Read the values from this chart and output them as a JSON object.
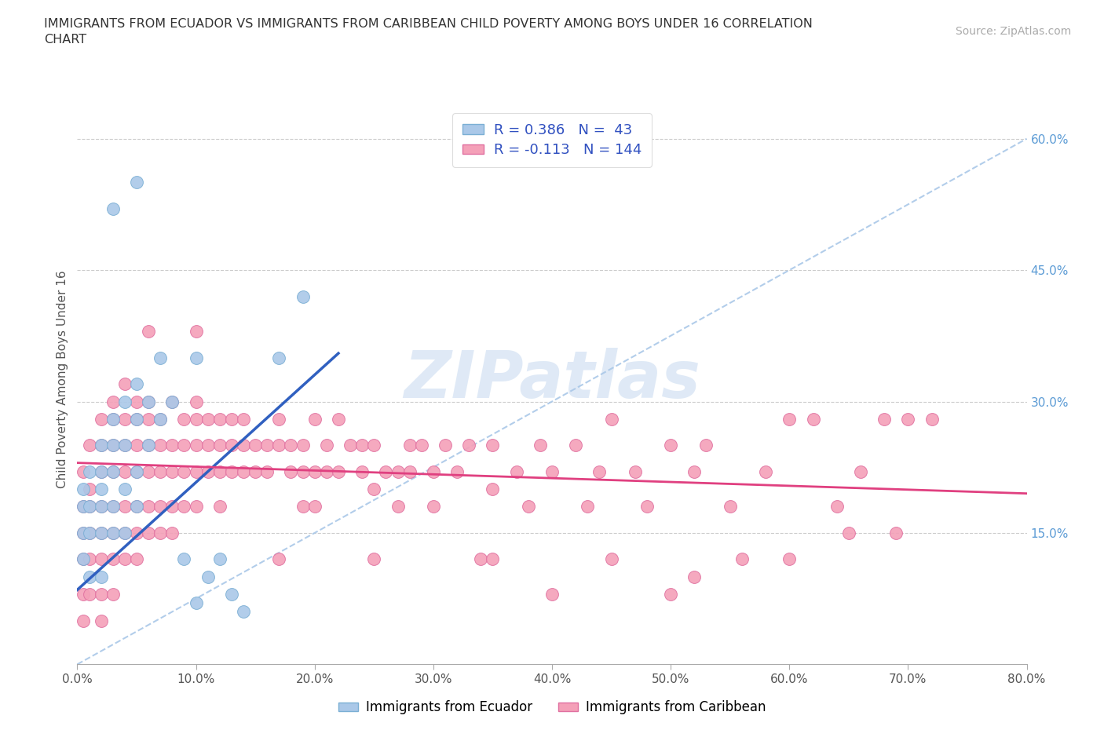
{
  "title": "IMMIGRANTS FROM ECUADOR VS IMMIGRANTS FROM CARIBBEAN CHILD POVERTY AMONG BOYS UNDER 16 CORRELATION\nCHART",
  "source_text": "Source: ZipAtlas.com",
  "ylabel": "Child Poverty Among Boys Under 16",
  "xlim": [
    0,
    0.8
  ],
  "ylim": [
    0,
    0.65
  ],
  "xticks": [
    0.0,
    0.1,
    0.2,
    0.3,
    0.4,
    0.5,
    0.6,
    0.7,
    0.8
  ],
  "xticklabels": [
    "0.0%",
    "10.0%",
    "20.0%",
    "30.0%",
    "40.0%",
    "50.0%",
    "60.0%",
    "70.0%",
    "80.0%"
  ],
  "yticks_right": [
    0.15,
    0.3,
    0.45,
    0.6
  ],
  "yticklabels_right": [
    "15.0%",
    "30.0%",
    "45.0%",
    "60.0%"
  ],
  "ecuador_color": "#aac8e8",
  "ecuador_edge": "#7bafd4",
  "caribbean_color": "#f4a0b8",
  "caribbean_edge": "#e070a0",
  "ecuador_R": 0.386,
  "ecuador_N": 43,
  "caribbean_R": -0.113,
  "caribbean_N": 144,
  "watermark": "ZIPatlas",
  "legend_label_ecuador": "Immigrants from Ecuador",
  "legend_label_caribbean": "Immigrants from Caribbean",
  "ecuador_trend": [
    0.0,
    0.085,
    0.22,
    0.355
  ],
  "caribbean_trend": [
    0.0,
    0.23,
    0.8,
    0.195
  ],
  "diag_line": [
    0.0,
    0.0,
    0.8,
    0.6
  ],
  "ecuador_scatter": [
    [
      0.005,
      0.2
    ],
    [
      0.005,
      0.18
    ],
    [
      0.005,
      0.15
    ],
    [
      0.005,
      0.12
    ],
    [
      0.01,
      0.22
    ],
    [
      0.01,
      0.18
    ],
    [
      0.01,
      0.15
    ],
    [
      0.01,
      0.1
    ],
    [
      0.02,
      0.25
    ],
    [
      0.02,
      0.22
    ],
    [
      0.02,
      0.2
    ],
    [
      0.02,
      0.18
    ],
    [
      0.02,
      0.15
    ],
    [
      0.02,
      0.1
    ],
    [
      0.03,
      0.28
    ],
    [
      0.03,
      0.25
    ],
    [
      0.03,
      0.22
    ],
    [
      0.03,
      0.18
    ],
    [
      0.03,
      0.15
    ],
    [
      0.04,
      0.3
    ],
    [
      0.04,
      0.25
    ],
    [
      0.04,
      0.2
    ],
    [
      0.04,
      0.15
    ],
    [
      0.05,
      0.32
    ],
    [
      0.05,
      0.28
    ],
    [
      0.05,
      0.22
    ],
    [
      0.05,
      0.18
    ],
    [
      0.06,
      0.3
    ],
    [
      0.06,
      0.25
    ],
    [
      0.07,
      0.35
    ],
    [
      0.07,
      0.28
    ],
    [
      0.08,
      0.3
    ],
    [
      0.09,
      0.12
    ],
    [
      0.1,
      0.35
    ],
    [
      0.11,
      0.1
    ],
    [
      0.12,
      0.12
    ],
    [
      0.13,
      0.08
    ],
    [
      0.05,
      0.55
    ],
    [
      0.17,
      0.35
    ],
    [
      0.19,
      0.42
    ],
    [
      0.03,
      0.52
    ],
    [
      0.1,
      0.07
    ],
    [
      0.14,
      0.06
    ]
  ],
  "caribbean_scatter": [
    [
      0.005,
      0.22
    ],
    [
      0.005,
      0.18
    ],
    [
      0.005,
      0.15
    ],
    [
      0.005,
      0.12
    ],
    [
      0.005,
      0.08
    ],
    [
      0.005,
      0.05
    ],
    [
      0.01,
      0.25
    ],
    [
      0.01,
      0.2
    ],
    [
      0.01,
      0.18
    ],
    [
      0.01,
      0.15
    ],
    [
      0.01,
      0.12
    ],
    [
      0.01,
      0.08
    ],
    [
      0.02,
      0.28
    ],
    [
      0.02,
      0.25
    ],
    [
      0.02,
      0.22
    ],
    [
      0.02,
      0.18
    ],
    [
      0.02,
      0.15
    ],
    [
      0.02,
      0.12
    ],
    [
      0.02,
      0.08
    ],
    [
      0.02,
      0.05
    ],
    [
      0.03,
      0.3
    ],
    [
      0.03,
      0.28
    ],
    [
      0.03,
      0.25
    ],
    [
      0.03,
      0.22
    ],
    [
      0.03,
      0.18
    ],
    [
      0.03,
      0.15
    ],
    [
      0.03,
      0.12
    ],
    [
      0.03,
      0.08
    ],
    [
      0.04,
      0.32
    ],
    [
      0.04,
      0.28
    ],
    [
      0.04,
      0.25
    ],
    [
      0.04,
      0.22
    ],
    [
      0.04,
      0.18
    ],
    [
      0.04,
      0.15
    ],
    [
      0.04,
      0.12
    ],
    [
      0.05,
      0.3
    ],
    [
      0.05,
      0.28
    ],
    [
      0.05,
      0.25
    ],
    [
      0.05,
      0.22
    ],
    [
      0.05,
      0.18
    ],
    [
      0.05,
      0.15
    ],
    [
      0.05,
      0.12
    ],
    [
      0.06,
      0.3
    ],
    [
      0.06,
      0.28
    ],
    [
      0.06,
      0.25
    ],
    [
      0.06,
      0.22
    ],
    [
      0.06,
      0.18
    ],
    [
      0.06,
      0.15
    ],
    [
      0.07,
      0.28
    ],
    [
      0.07,
      0.25
    ],
    [
      0.07,
      0.22
    ],
    [
      0.07,
      0.18
    ],
    [
      0.07,
      0.15
    ],
    [
      0.08,
      0.3
    ],
    [
      0.08,
      0.25
    ],
    [
      0.08,
      0.22
    ],
    [
      0.08,
      0.18
    ],
    [
      0.08,
      0.15
    ],
    [
      0.09,
      0.28
    ],
    [
      0.09,
      0.25
    ],
    [
      0.09,
      0.22
    ],
    [
      0.09,
      0.18
    ],
    [
      0.1,
      0.3
    ],
    [
      0.1,
      0.28
    ],
    [
      0.1,
      0.25
    ],
    [
      0.1,
      0.22
    ],
    [
      0.1,
      0.18
    ],
    [
      0.11,
      0.28
    ],
    [
      0.11,
      0.25
    ],
    [
      0.11,
      0.22
    ],
    [
      0.12,
      0.28
    ],
    [
      0.12,
      0.25
    ],
    [
      0.12,
      0.22
    ],
    [
      0.12,
      0.18
    ],
    [
      0.13,
      0.28
    ],
    [
      0.13,
      0.25
    ],
    [
      0.13,
      0.22
    ],
    [
      0.14,
      0.28
    ],
    [
      0.14,
      0.25
    ],
    [
      0.14,
      0.22
    ],
    [
      0.15,
      0.25
    ],
    [
      0.15,
      0.22
    ],
    [
      0.16,
      0.25
    ],
    [
      0.16,
      0.22
    ],
    [
      0.17,
      0.28
    ],
    [
      0.17,
      0.25
    ],
    [
      0.17,
      0.12
    ],
    [
      0.18,
      0.25
    ],
    [
      0.18,
      0.22
    ],
    [
      0.19,
      0.25
    ],
    [
      0.19,
      0.22
    ],
    [
      0.19,
      0.18
    ],
    [
      0.2,
      0.28
    ],
    [
      0.2,
      0.22
    ],
    [
      0.2,
      0.18
    ],
    [
      0.21,
      0.25
    ],
    [
      0.21,
      0.22
    ],
    [
      0.22,
      0.28
    ],
    [
      0.22,
      0.22
    ],
    [
      0.23,
      0.25
    ],
    [
      0.24,
      0.25
    ],
    [
      0.24,
      0.22
    ],
    [
      0.25,
      0.25
    ],
    [
      0.25,
      0.2
    ],
    [
      0.25,
      0.12
    ],
    [
      0.26,
      0.22
    ],
    [
      0.27,
      0.22
    ],
    [
      0.27,
      0.18
    ],
    [
      0.28,
      0.25
    ],
    [
      0.28,
      0.22
    ],
    [
      0.29,
      0.25
    ],
    [
      0.3,
      0.22
    ],
    [
      0.3,
      0.18
    ],
    [
      0.31,
      0.25
    ],
    [
      0.32,
      0.22
    ],
    [
      0.33,
      0.25
    ],
    [
      0.34,
      0.12
    ],
    [
      0.35,
      0.25
    ],
    [
      0.35,
      0.2
    ],
    [
      0.35,
      0.12
    ],
    [
      0.37,
      0.22
    ],
    [
      0.38,
      0.18
    ],
    [
      0.39,
      0.25
    ],
    [
      0.4,
      0.22
    ],
    [
      0.4,
      0.08
    ],
    [
      0.42,
      0.25
    ],
    [
      0.43,
      0.18
    ],
    [
      0.44,
      0.22
    ],
    [
      0.45,
      0.28
    ],
    [
      0.45,
      0.12
    ],
    [
      0.47,
      0.22
    ],
    [
      0.48,
      0.18
    ],
    [
      0.5,
      0.25
    ],
    [
      0.5,
      0.08
    ],
    [
      0.52,
      0.22
    ],
    [
      0.52,
      0.1
    ],
    [
      0.53,
      0.25
    ],
    [
      0.55,
      0.18
    ],
    [
      0.56,
      0.12
    ],
    [
      0.58,
      0.22
    ],
    [
      0.6,
      0.28
    ],
    [
      0.6,
      0.12
    ],
    [
      0.62,
      0.28
    ],
    [
      0.64,
      0.18
    ],
    [
      0.65,
      0.15
    ],
    [
      0.66,
      0.22
    ],
    [
      0.68,
      0.28
    ],
    [
      0.69,
      0.15
    ],
    [
      0.7,
      0.28
    ],
    [
      0.72,
      0.28
    ],
    [
      0.1,
      0.38
    ],
    [
      0.06,
      0.38
    ]
  ]
}
